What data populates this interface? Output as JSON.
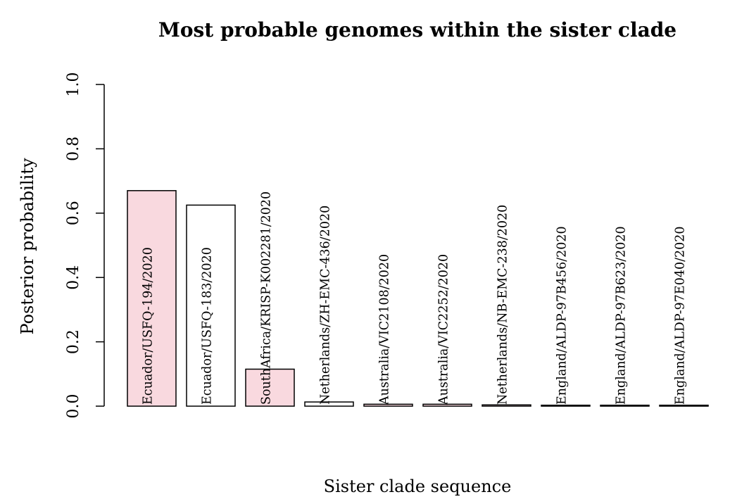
{
  "chart_data": {
    "type": "bar",
    "title": "Most probable genomes within the sister clade",
    "xlabel": "Sister clade sequence",
    "ylabel": "Posterior probability",
    "ylim": [
      0,
      1
    ],
    "yticks": [
      "0.0",
      "0.2",
      "0.4",
      "0.6",
      "0.8",
      "1.0"
    ],
    "grid": false,
    "legend": "none",
    "bar_labels_inside": true,
    "categories": [
      "Ecuador/USFQ-194/2020",
      "Ecuador/USFQ-183/2020",
      "SouthAfrica/KRISP-K002281/2020",
      "Netherlands/ZH-EMC-436/2020",
      "Australia/VIC2108/2020",
      "Australia/VIC2252/2020",
      "Netherlands/NB-EMC-238/2020",
      "England/ALDP-97B456/2020",
      "England/ALDP-97B623/2020",
      "England/ALDP-97E040/2020"
    ],
    "values": [
      0.67,
      0.625,
      0.115,
      0.013,
      0.006,
      0.006,
      0.004,
      0.003,
      0.003,
      0.003
    ],
    "highlighted": [
      true,
      false,
      true,
      false,
      true,
      true,
      true,
      false,
      false,
      false
    ],
    "colors": {
      "highlight_fill": "#f9d9df",
      "normal_fill": "#ffffff",
      "stroke": "#000000"
    }
  }
}
